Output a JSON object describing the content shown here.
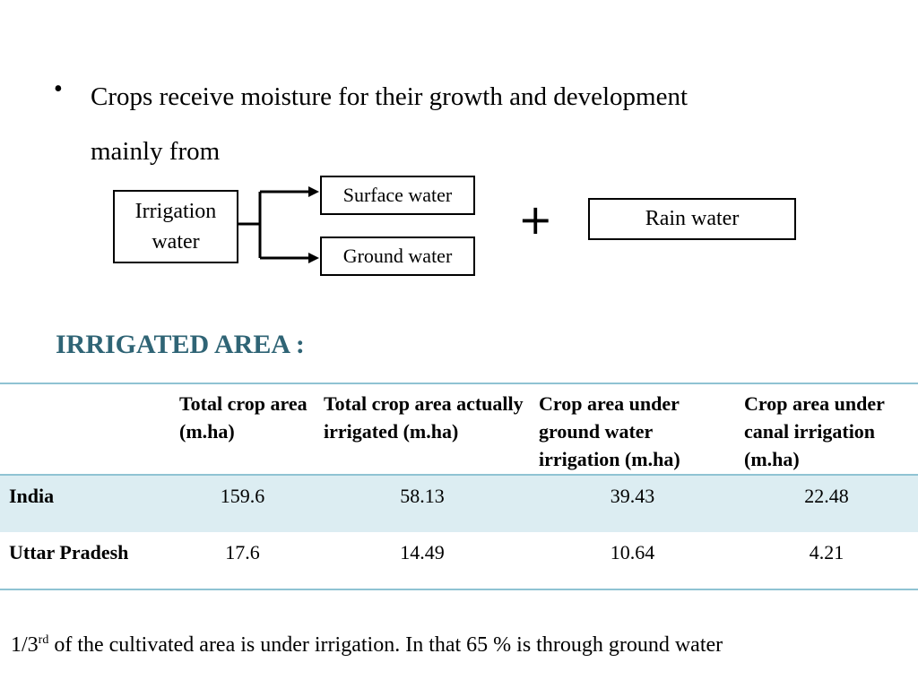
{
  "bullet": {
    "marker": "•",
    "line1": "Crops receive moisture for their growth and development",
    "line2": "mainly from"
  },
  "diagram": {
    "irrigation_line1": "Irrigation",
    "irrigation_line2": "water",
    "surface": "Surface water",
    "ground": "Ground water",
    "plus": "+",
    "rain": "Rain water"
  },
  "heading": "IRRIGATED AREA :",
  "table": {
    "headers": [
      "",
      "Total crop area (m.ha)",
      "Total crop area actually irrigated (m.ha)",
      "Crop area under ground water irrigation (m.ha)",
      "Crop area under canal irrigation (m.ha)"
    ],
    "rows": [
      {
        "label": "India",
        "values": [
          "159.6",
          "58.13",
          "39.43",
          "22.48"
        ]
      },
      {
        "label": "Uttar Pradesh",
        "values": [
          "17.6",
          "14.49",
          "10.64",
          "4.21"
        ]
      }
    ]
  },
  "note": {
    "prefix": "1/3",
    "sup": "rd",
    "text": " of the cultivated area is under irrigation. In that 65 % is through ground water"
  }
}
